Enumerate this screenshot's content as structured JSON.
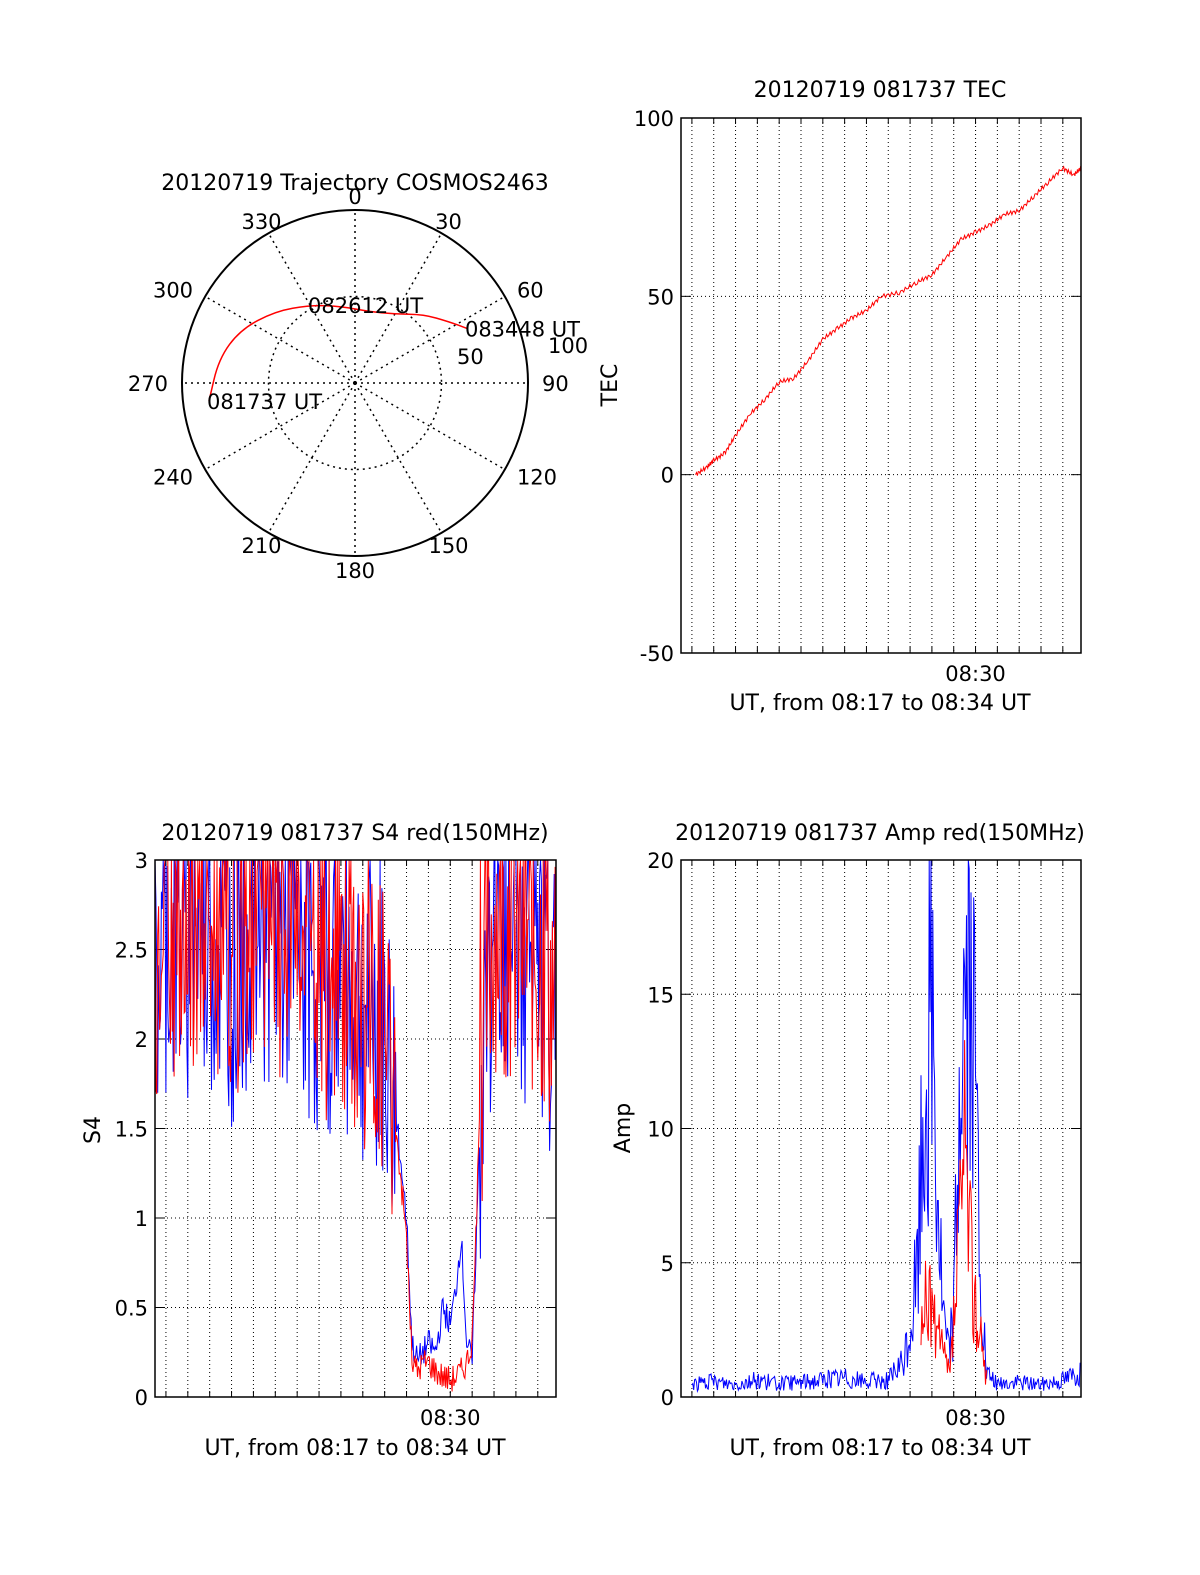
{
  "colors": {
    "red": "#ff0000",
    "blue": "#0000ff",
    "axis": "#000000",
    "grid": "#000000",
    "background": "#ffffff"
  },
  "chart_data": [
    {
      "type": "polar-trajectory",
      "title": "20120719 Trajectory COSMOS2463",
      "azimuth_labels": [
        "0",
        "30",
        "60",
        "90",
        "120",
        "150",
        "180",
        "210",
        "240",
        "270",
        "300",
        "330"
      ],
      "elevation_labels": [
        "50",
        "100"
      ],
      "elevation_ring_values": [
        50
      ],
      "grid": true,
      "series": [
        {
          "color": "red",
          "points_az_el": [
            [
              263,
              15
            ],
            [
              280,
              20
            ],
            [
              295,
              27
            ],
            [
              312,
              38
            ],
            [
              330,
              48
            ],
            [
              350,
              55
            ],
            [
              10,
              58
            ],
            [
              30,
              54
            ],
            [
              45,
              44
            ],
            [
              57,
              35
            ],
            [
              64,
              28
            ]
          ]
        }
      ],
      "annotations": [
        {
          "text": "081737 UT",
          "az": 263,
          "el": 15
        },
        {
          "text": "082612 UT",
          "az": 330,
          "el": 48
        },
        {
          "text": "083448 UT",
          "az": 64,
          "el": 28
        }
      ]
    },
    {
      "type": "line",
      "title": "20120719 081737 TEC",
      "xlabel": "UT, from 08:17 to 08:34 UT",
      "ylabel": "TEC",
      "xlim": [
        "08:16:30",
        "08:34:50"
      ],
      "ylim": [
        -50,
        100
      ],
      "yticks": [
        -50,
        0,
        50,
        100
      ],
      "xticks": [
        "08:30"
      ],
      "grid": true,
      "series": [
        {
          "color": "red",
          "x": [
            "08:17:10",
            "08:17:40",
            "08:18:00",
            "08:18:30",
            "08:19:00",
            "08:19:40",
            "08:20:20",
            "08:21:00",
            "08:21:40",
            "08:22:20",
            "08:23:00",
            "08:23:40",
            "08:24:20",
            "08:25:00",
            "08:25:40",
            "08:26:30",
            "08:27:20",
            "08:28:00",
            "08:28:40",
            "08:29:20",
            "08:30:00",
            "08:30:40",
            "08:31:20",
            "08:32:00",
            "08:32:40",
            "08:33:20",
            "08:34:00",
            "08:34:30",
            "08:34:50"
          ],
          "y": [
            0,
            2,
            4,
            6,
            11,
            17,
            21,
            26,
            27,
            32,
            38,
            41,
            44,
            46,
            50,
            51,
            54,
            56,
            61,
            66,
            68,
            70,
            73,
            74,
            78,
            82,
            86,
            84,
            86
          ]
        }
      ]
    },
    {
      "type": "line",
      "title": "20120719 081737 S4 red(150MHz)",
      "xlabel": "UT, from 08:17 to 08:34 UT",
      "ylabel": "S4",
      "xlim": [
        "08:16:30",
        "08:34:50"
      ],
      "ylim": [
        0,
        3
      ],
      "yticks": [
        0,
        0.5,
        1,
        1.5,
        2,
        2.5,
        3
      ],
      "ytick_labels": [
        "0",
        "0.5",
        "1",
        "1.5",
        "2",
        "2.5",
        "3"
      ],
      "xticks": [
        "08:30"
      ],
      "grid": true,
      "series": [
        {
          "color": "blue",
          "x": [
            "08:16:30",
            "08:17:00",
            "08:18:00",
            "08:19:00",
            "08:20:00",
            "08:21:00",
            "08:22:00",
            "08:23:00",
            "08:24:00",
            "08:25:00",
            "08:26:00",
            "08:27:00",
            "08:27:30",
            "08:28:00",
            "08:28:15",
            "08:28:30",
            "08:28:45",
            "08:29:00",
            "08:29:20",
            "08:29:40",
            "08:30:00",
            "08:30:15",
            "08:30:30",
            "08:30:45",
            "08:31:00",
            "08:31:30",
            "08:32:00",
            "08:33:00",
            "08:34:00",
            "08:34:50"
          ],
          "y": [
            2.3,
            2.6,
            2.5,
            2.6,
            2.4,
            2.7,
            2.6,
            2.5,
            2.3,
            2.4,
            2.2,
            2.0,
            1.6,
            1.0,
            0.3,
            0.2,
            0.25,
            0.3,
            0.25,
            0.5,
            0.4,
            0.6,
            0.9,
            0.3,
            0.2,
            2.0,
            2.6,
            2.5,
            2.4,
            2.0
          ]
        },
        {
          "color": "red",
          "x": [
            "08:16:30",
            "08:17:00",
            "08:18:00",
            "08:19:00",
            "08:20:00",
            "08:21:00",
            "08:22:00",
            "08:23:00",
            "08:24:00",
            "08:25:00",
            "08:26:00",
            "08:27:00",
            "08:27:30",
            "08:28:00",
            "08:28:15",
            "08:28:30",
            "08:28:45",
            "08:29:00",
            "08:29:20",
            "08:29:40",
            "08:30:00",
            "08:30:15",
            "08:30:30",
            "08:30:45",
            "08:31:00",
            "08:31:30",
            "08:32:00",
            "08:33:00",
            "08:34:00",
            "08:34:50"
          ],
          "y": [
            2.4,
            2.7,
            2.6,
            2.7,
            2.5,
            2.8,
            2.7,
            2.6,
            2.4,
            2.5,
            2.3,
            2.1,
            1.5,
            0.9,
            0.2,
            0.15,
            0.2,
            0.2,
            0.15,
            0.12,
            0.1,
            0.12,
            0.15,
            0.2,
            0.3,
            2.1,
            2.7,
            2.6,
            2.5,
            2.2
          ]
        }
      ]
    },
    {
      "type": "line",
      "title": "20120719 081737 Amp red(150MHz)",
      "xlabel": "UT, from 08:17 to 08:34 UT",
      "ylabel": "Amp",
      "xlim": [
        "08:16:30",
        "08:34:50"
      ],
      "ylim": [
        0,
        20
      ],
      "yticks": [
        0,
        5,
        10,
        15,
        20
      ],
      "xticks": [
        "08:30"
      ],
      "grid": true,
      "series": [
        {
          "color": "blue",
          "x": [
            "08:17:00",
            "08:18:00",
            "08:19:00",
            "08:20:00",
            "08:21:00",
            "08:22:00",
            "08:23:00",
            "08:24:00",
            "08:25:00",
            "08:26:00",
            "08:26:40",
            "08:27:00",
            "08:27:20",
            "08:27:40",
            "08:28:00",
            "08:28:15",
            "08:28:30",
            "08:28:45",
            "08:29:00",
            "08:29:20",
            "08:29:40",
            "08:30:00",
            "08:30:15",
            "08:30:30",
            "08:30:45",
            "08:31:00",
            "08:31:30",
            "08:32:00",
            "08:33:00",
            "08:34:00",
            "08:34:50"
          ],
          "y": [
            0.6,
            0.7,
            0.6,
            0.8,
            0.6,
            0.7,
            0.8,
            0.9,
            0.7,
            0.8,
            1.5,
            3.0,
            6.0,
            14.0,
            19.0,
            10.0,
            4.0,
            2.0,
            4.0,
            17.0,
            19.0,
            14.0,
            5.0,
            1.0,
            0.8,
            0.6,
            0.6,
            0.7,
            0.6,
            0.8,
            1.2
          ]
        },
        {
          "color": "red",
          "x": [
            "08:27:30",
            "08:27:50",
            "08:28:10",
            "08:28:30",
            "08:28:50",
            "08:29:10",
            "08:29:30",
            "08:29:50",
            "08:30:10",
            "08:30:30"
          ],
          "y": [
            2.5,
            5.0,
            3.0,
            2.0,
            1.0,
            6.0,
            11.0,
            6.0,
            3.0,
            1.0
          ]
        }
      ]
    }
  ]
}
